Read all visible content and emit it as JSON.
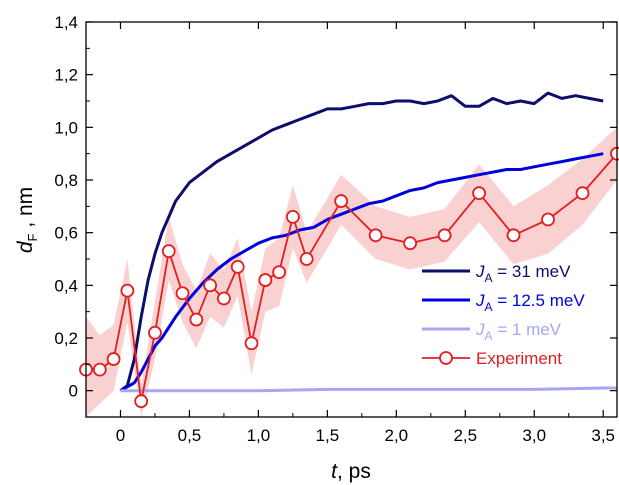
{
  "chart_data": {
    "type": "line",
    "xlabel": {
      "var": "t",
      "unit": ", ps"
    },
    "ylabel": {
      "var": "d",
      "sub": "F",
      "unit": " , nm"
    },
    "xlim": [
      -0.25,
      3.6
    ],
    "ylim": [
      -0.1,
      1.4
    ],
    "xticks": [
      0,
      0.5,
      1.0,
      1.5,
      2.0,
      2.5,
      3.0,
      3.5
    ],
    "xtick_labels": [
      "0",
      "0,5",
      "1,0",
      "1,5",
      "2,0",
      "2,5",
      "3,0",
      "3,5"
    ],
    "yticks": [
      0,
      0.2,
      0.4,
      0.6,
      0.8,
      1.0,
      1.2,
      1.4
    ],
    "ytick_labels": [
      "0",
      "0,2",
      "0,4",
      "0,6",
      "0,8",
      "1,0",
      "1,2",
      "1,4"
    ],
    "legend_position": "right",
    "series": [
      {
        "name": "J_A = 31 meV",
        "legend": {
          "sym": "J",
          "sub": "A",
          "rest": " = 31 meV"
        },
        "color": "#0d0d6b",
        "x": [
          0.0,
          0.05,
          0.1,
          0.15,
          0.2,
          0.25,
          0.3,
          0.35,
          0.4,
          0.5,
          0.6,
          0.7,
          0.8,
          0.9,
          1.0,
          1.1,
          1.2,
          1.3,
          1.4,
          1.5,
          1.6,
          1.7,
          1.8,
          1.9,
          2.0,
          2.1,
          2.2,
          2.3,
          2.4,
          2.5,
          2.6,
          2.7,
          2.8,
          2.9,
          3.0,
          3.1,
          3.2,
          3.3,
          3.4,
          3.5
        ],
        "y": [
          0.0,
          0.02,
          0.12,
          0.28,
          0.42,
          0.52,
          0.6,
          0.66,
          0.72,
          0.79,
          0.83,
          0.87,
          0.9,
          0.93,
          0.96,
          0.99,
          1.01,
          1.03,
          1.05,
          1.07,
          1.07,
          1.08,
          1.09,
          1.09,
          1.1,
          1.1,
          1.09,
          1.1,
          1.12,
          1.08,
          1.08,
          1.11,
          1.09,
          1.1,
          1.09,
          1.13,
          1.11,
          1.12,
          1.11,
          1.1
        ]
      },
      {
        "name": "J_A = 12.5 meV",
        "legend": {
          "sym": "J",
          "sub": "A",
          "rest": " = 12.5 meV"
        },
        "color": "#0000dd",
        "x": [
          0.0,
          0.1,
          0.15,
          0.2,
          0.25,
          0.3,
          0.4,
          0.5,
          0.6,
          0.7,
          0.8,
          0.9,
          1.0,
          1.1,
          1.2,
          1.3,
          1.4,
          1.5,
          1.6,
          1.7,
          1.8,
          1.9,
          2.0,
          2.1,
          2.2,
          2.3,
          2.4,
          2.5,
          2.6,
          2.7,
          2.8,
          2.9,
          3.0,
          3.1,
          3.2,
          3.3,
          3.4,
          3.5
        ],
        "y": [
          0.0,
          0.03,
          0.07,
          0.12,
          0.17,
          0.2,
          0.28,
          0.35,
          0.41,
          0.46,
          0.5,
          0.53,
          0.56,
          0.58,
          0.59,
          0.61,
          0.62,
          0.65,
          0.67,
          0.69,
          0.71,
          0.72,
          0.74,
          0.76,
          0.77,
          0.79,
          0.8,
          0.81,
          0.82,
          0.83,
          0.84,
          0.84,
          0.85,
          0.86,
          0.87,
          0.88,
          0.89,
          0.9
        ]
      },
      {
        "name": "J_A = 1 meV",
        "legend": {
          "sym": "J",
          "sub": "A",
          "rest": " = 1 meV"
        },
        "color": "#a7a7f2",
        "x": [
          0.0,
          0.5,
          1.0,
          1.5,
          2.0,
          2.5,
          3.0,
          3.5,
          3.6
        ],
        "y": [
          0.0,
          0.0,
          0.0,
          0.005,
          0.005,
          0.005,
          0.005,
          0.01,
          0.01
        ]
      },
      {
        "name": "Experiment",
        "legend": {
          "sym": "",
          "sub": "",
          "rest": "Experiment"
        },
        "color": "#e02020",
        "band_color": "#f7b9b9",
        "x": [
          -0.25,
          -0.15,
          -0.05,
          0.05,
          0.15,
          0.25,
          0.35,
          0.45,
          0.55,
          0.65,
          0.75,
          0.85,
          0.95,
          1.05,
          1.15,
          1.25,
          1.35,
          1.6,
          1.85,
          2.1,
          2.35,
          2.6,
          2.85,
          3.1,
          3.35,
          3.6
        ],
        "y": [
          0.08,
          0.08,
          0.12,
          0.38,
          -0.04,
          0.22,
          0.53,
          0.37,
          0.27,
          0.4,
          0.35,
          0.47,
          0.18,
          0.42,
          0.45,
          0.66,
          0.5,
          0.72,
          0.59,
          0.56,
          0.59,
          0.75,
          0.59,
          0.65,
          0.75,
          0.9
        ],
        "err_low": [
          -0.1,
          -0.05,
          0.0,
          0.26,
          -0.1,
          0.12,
          0.42,
          0.26,
          0.16,
          0.28,
          0.24,
          0.36,
          0.06,
          0.3,
          0.32,
          0.54,
          0.41,
          0.63,
          0.5,
          0.46,
          0.49,
          0.64,
          0.48,
          0.52,
          0.63,
          0.8
        ],
        "err_high": [
          0.28,
          0.21,
          0.25,
          0.5,
          0.02,
          0.34,
          0.66,
          0.48,
          0.38,
          0.52,
          0.46,
          0.58,
          0.3,
          0.54,
          0.58,
          0.78,
          0.6,
          0.82,
          0.7,
          0.66,
          0.69,
          0.86,
          0.7,
          0.78,
          0.88,
          1.0
        ]
      }
    ]
  }
}
